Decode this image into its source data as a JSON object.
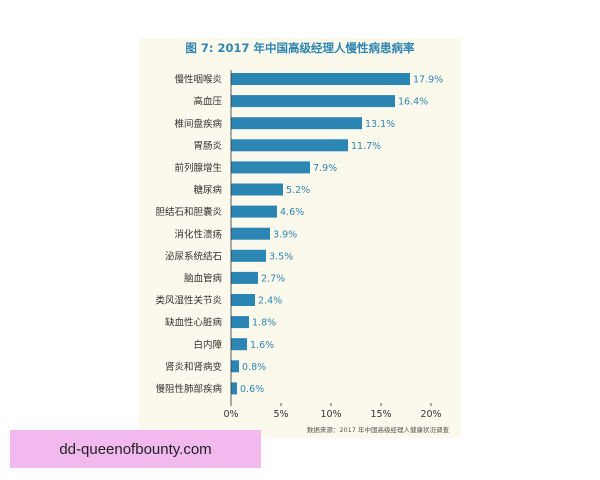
{
  "chart_data": {
    "type": "bar",
    "orientation": "horizontal",
    "title_prefix": "图 7:",
    "title": "2017 年中国高级经理人慢性病患病率",
    "categories": [
      "慢性咽喉炎",
      "高血压",
      "椎间盘疾病",
      "胃肠炎",
      "前列腺增生",
      "糖尿病",
      "胆结石和胆囊炎",
      "消化性溃疡",
      "泌尿系统结石",
      "脑血管病",
      "类风湿性关节炎",
      "缺血性心脏病",
      "白内障",
      "肾炎和肾病变",
      "慢阻性肺部疾病"
    ],
    "values": [
      17.9,
      16.4,
      13.1,
      11.7,
      7.9,
      5.2,
      4.6,
      3.9,
      3.5,
      2.7,
      2.4,
      1.8,
      1.6,
      0.8,
      0.6
    ],
    "value_labels": [
      "17.9%",
      "16.4%",
      "13.1%",
      "11.7%",
      "7.9%",
      "5.2%",
      "4.6%",
      "3.9%",
      "3.5%",
      "2.7%",
      "2.4%",
      "1.8%",
      "1.6%",
      "0.8%",
      "0.6%"
    ],
    "xticks": [
      0,
      5,
      10,
      15,
      20
    ],
    "xtick_labels": [
      "0%",
      "5%",
      "10%",
      "15%",
      "20%"
    ],
    "xlim": [
      0,
      20
    ],
    "grid": false,
    "colors": {
      "bar": "#2b86b4",
      "title": "#2f86b0",
      "label": "#2f86b0",
      "panel_background": "#fbf8ec"
    },
    "source": "数据来源：2017 年中国高级经理人健康状况调查"
  },
  "watermark": "dd-queenofbounty.com"
}
